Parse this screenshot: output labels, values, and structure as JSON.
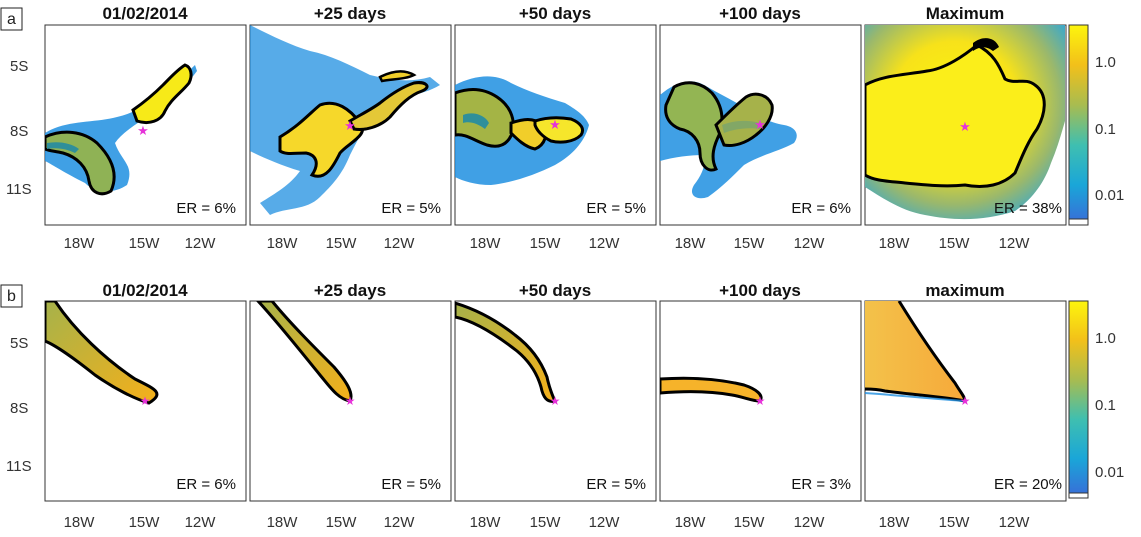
{
  "chart_data": {
    "type": "heatmap",
    "colorbar": {
      "scale": "log",
      "ticks": [
        "1.0",
        "0.1",
        "0.01"
      ],
      "colors": [
        "#3a6ad8",
        "#1aa6d8",
        "#55c0a0",
        "#c6b840",
        "#f2c01a",
        "#fdf50d"
      ]
    },
    "x_ticks": [
      "18W",
      "15W",
      "12W"
    ],
    "y_ticks": [
      "5S",
      "8S",
      "11S"
    ],
    "xlim": [
      -20.2,
      -10.4
    ],
    "ylim": [
      -12.4,
      -3.8
    ],
    "source_marker": {
      "lon": -14.4,
      "lat": -7.95,
      "color": "#e633d9"
    },
    "rows": [
      {
        "label": "a",
        "panels": [
          {
            "title": "01/02/2014",
            "er": "ER = 6%"
          },
          {
            "title": "+25 days",
            "er": "ER = 5%"
          },
          {
            "title": "+50 days",
            "er": "ER = 5%"
          },
          {
            "title": "+100 days",
            "er": "ER = 6%"
          },
          {
            "title": "Maximum",
            "er": "ER = 38%"
          }
        ]
      },
      {
        "label": "b",
        "panels": [
          {
            "title": "01/02/2014",
            "er": "ER = 6%"
          },
          {
            "title": "+25 days",
            "er": "ER = 5%"
          },
          {
            "title": "+50 days",
            "er": "ER = 5%"
          },
          {
            "title": "+100 days",
            "er": "ER = 3%"
          },
          {
            "title": "maximum",
            "er": "ER = 20%"
          }
        ]
      }
    ]
  }
}
